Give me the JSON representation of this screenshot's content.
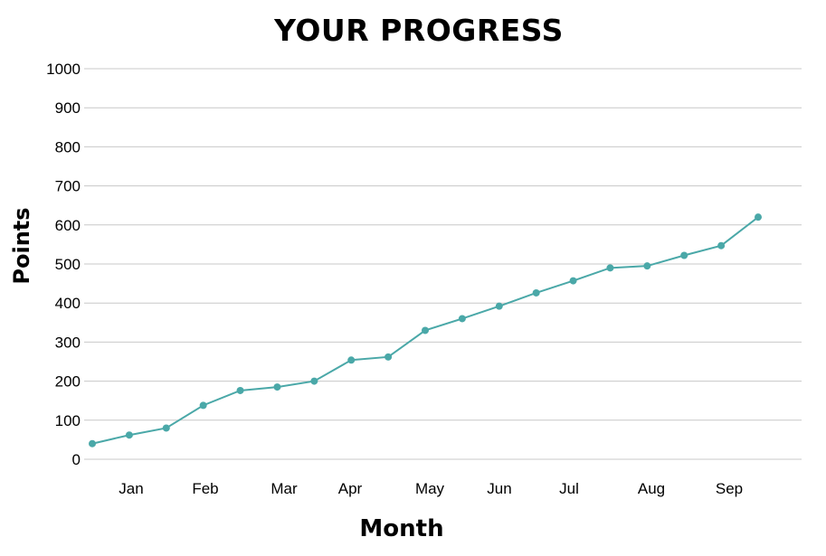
{
  "chart_data": {
    "type": "line",
    "title": "YOUR PROGRESS",
    "xlabel": "Month",
    "ylabel": "Points",
    "ylim": [
      0,
      1000
    ],
    "yticks": [
      0,
      100,
      200,
      300,
      400,
      500,
      600,
      700,
      800,
      900,
      1000
    ],
    "x_tick_labels": [
      "Jan",
      "Feb",
      "Mar",
      "Apr",
      "May",
      "Jun",
      "Jul",
      "Aug",
      "Sep"
    ],
    "grid": true,
    "colors": {
      "line": "#4aa8a8",
      "grid": "#c8c8c8"
    },
    "series": [
      {
        "values": [
          40,
          62,
          80,
          138,
          176,
          185,
          200,
          254,
          262,
          330,
          360,
          392,
          426,
          457,
          490,
          495,
          522,
          547,
          620
        ]
      }
    ]
  }
}
